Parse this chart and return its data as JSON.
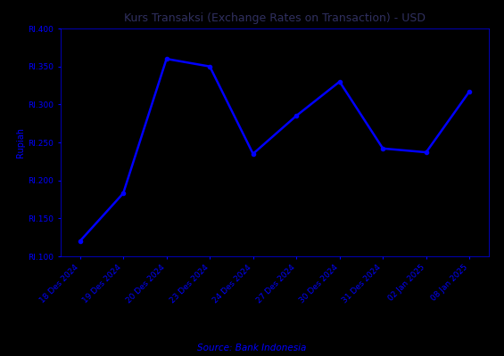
{
  "title": "Kurs Transaksi (Exchange Rates on Transaction) - USD",
  "source_label": "Source: Bank Indonesia",
  "ylabel": "Rupiah",
  "dates": [
    "18 Des 2024",
    "19 Des 2024",
    "20 Des 2024",
    "23 Des 2024",
    "24 Des 2024",
    "27 Des 2024",
    "30 Des 2024",
    "31 Des 2024",
    "02 Jan 2025",
    "08 Jan 2025"
  ],
  "values": [
    16120,
    16183,
    16360,
    16350,
    16235,
    16285,
    16330,
    16242,
    16237,
    16317
  ],
  "line_color": "#0000FF",
  "marker": "o",
  "marker_size": 3,
  "ylim": [
    16100,
    16400
  ],
  "yticks": [
    16100,
    16150,
    16200,
    16250,
    16300,
    16350,
    16400
  ],
  "background_color": "#000000",
  "line_text_color": "#0000FF",
  "title_color": "#303060",
  "title_fontsize": 9,
  "tick_fontsize": 6.5,
  "ylabel_fontsize": 7,
  "source_fontsize": 7.5,
  "linewidth": 1.8
}
